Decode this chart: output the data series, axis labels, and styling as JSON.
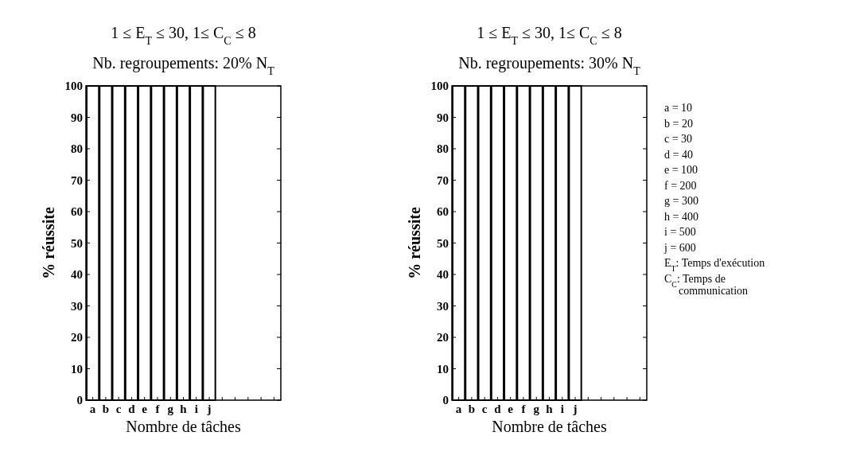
{
  "chart_data": [
    {
      "type": "bar",
      "title": "1 ≤ E$_{T}$ ≤ 30, 1≤ C$_{C}$ ≤ 8",
      "subtitle": "Nb. regroupements: 20% N$_{T}$",
      "xlabel": "Nombre de tâches",
      "ylabel": "% réussite",
      "categories": [
        "a",
        "b",
        "c",
        "d",
        "e",
        "f",
        "g",
        "h",
        "i",
        "j",
        null,
        null,
        null,
        null,
        null
      ],
      "values": [
        100,
        100,
        100,
        100,
        100,
        100,
        100,
        100,
        100,
        100,
        null,
        null,
        null,
        null,
        null
      ],
      "color": "#ffffff",
      "ylim": [
        0,
        100
      ],
      "yticks": [
        0,
        10,
        20,
        30,
        40,
        50,
        60,
        70,
        80,
        90,
        100
      ],
      "grid": false
    },
    {
      "type": "bar",
      "title": "1 ≤ E$_{T}$ ≤ 30, 1≤ C$_{C}$ ≤ 8",
      "subtitle": "Nb. regroupements: 30% N$_{T}$",
      "xlabel": "Nombre de tâches",
      "ylabel": "% réussite",
      "categories": [
        "a",
        "b",
        "c",
        "d",
        "e",
        "f",
        "g",
        "h",
        "i",
        "j",
        null,
        null,
        null,
        null,
        null
      ],
      "values": [
        100,
        100,
        100,
        100,
        100,
        100,
        100,
        100,
        100,
        100,
        null,
        null,
        null,
        null,
        null
      ],
      "color": "#ffffff",
      "ylim": [
        0,
        100
      ],
      "yticks": [
        0,
        10,
        20,
        30,
        40,
        50,
        60,
        70,
        80,
        90,
        100
      ],
      "grid": false,
      "annotations": [
        "a = 10",
        "b = 20",
        "c = 30",
        "d = 40",
        "e = 100",
        "f = 200",
        "g = 300",
        "h = 400",
        "i = 500",
        "j = 600",
        "E$_{T}$: Temps d'exécution",
        "C$_{C}$: Temps de communication"
      ]
    }
  ]
}
